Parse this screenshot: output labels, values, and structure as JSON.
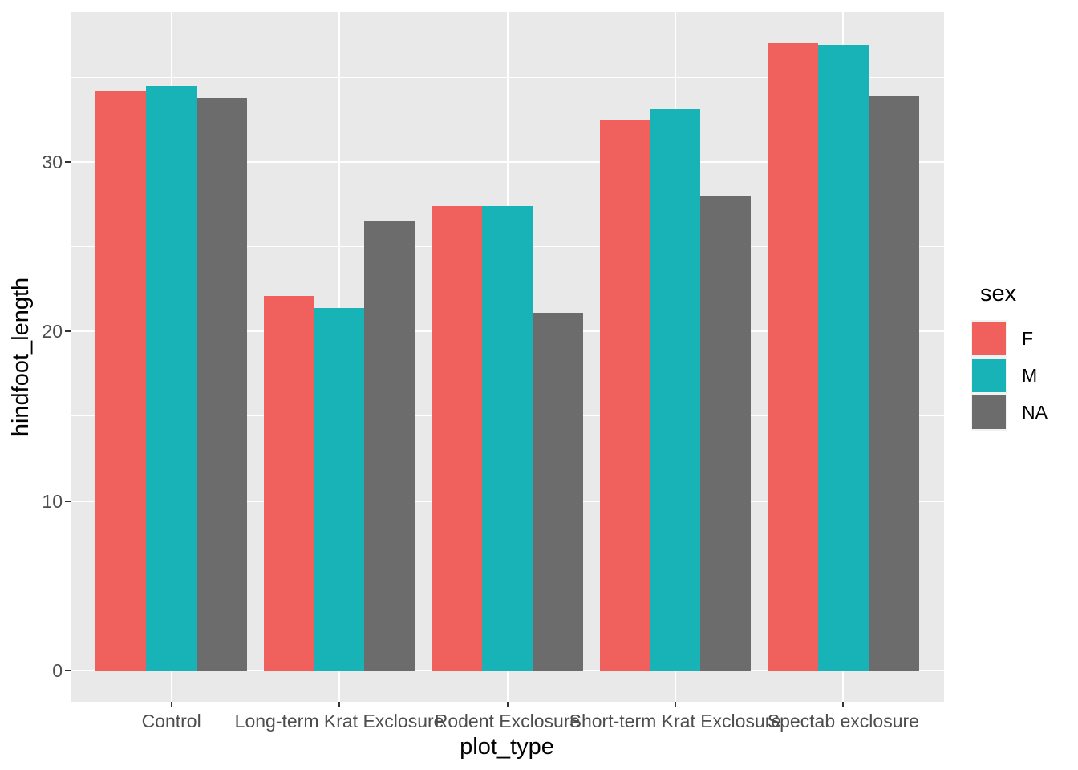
{
  "chart_data": {
    "type": "bar",
    "title": "",
    "xlabel": "plot_type",
    "ylabel": "hindfoot_length",
    "categories": [
      "Control",
      "Long-term Krat Exclosure",
      "Rodent Exclosure",
      "Short-term Krat Exclosure",
      "Spectab exclosure"
    ],
    "series": [
      {
        "name": "F",
        "color": "#F0605C",
        "values": [
          34.2,
          22.1,
          27.4,
          32.5,
          37.0
        ]
      },
      {
        "name": "M",
        "color": "#17B3B6",
        "values": [
          34.5,
          21.4,
          27.4,
          33.1,
          36.9
        ]
      },
      {
        "name": "NA",
        "color": "#6C6C6C",
        "values": [
          33.8,
          26.5,
          21.1,
          28.0,
          33.9
        ]
      }
    ],
    "legend_title": "sex",
    "legend_position": "right",
    "ylim": [
      -1.85,
      38.85
    ],
    "yticks": [
      0,
      10,
      20,
      30
    ],
    "ytick_labels": [
      "0",
      "10",
      "20",
      "30"
    ],
    "yticks_minor": [
      5,
      15,
      25,
      35
    ],
    "grid": "on",
    "bar_group_width": 0.9,
    "colors": {
      "panel_background": "#E9E9E9",
      "grid": "#FFFFFF",
      "axis_text": "#4D4D4D",
      "axis_title": "#000000",
      "tick_mark": "#333333",
      "legend_key_background": "#F2F2F2"
    }
  }
}
